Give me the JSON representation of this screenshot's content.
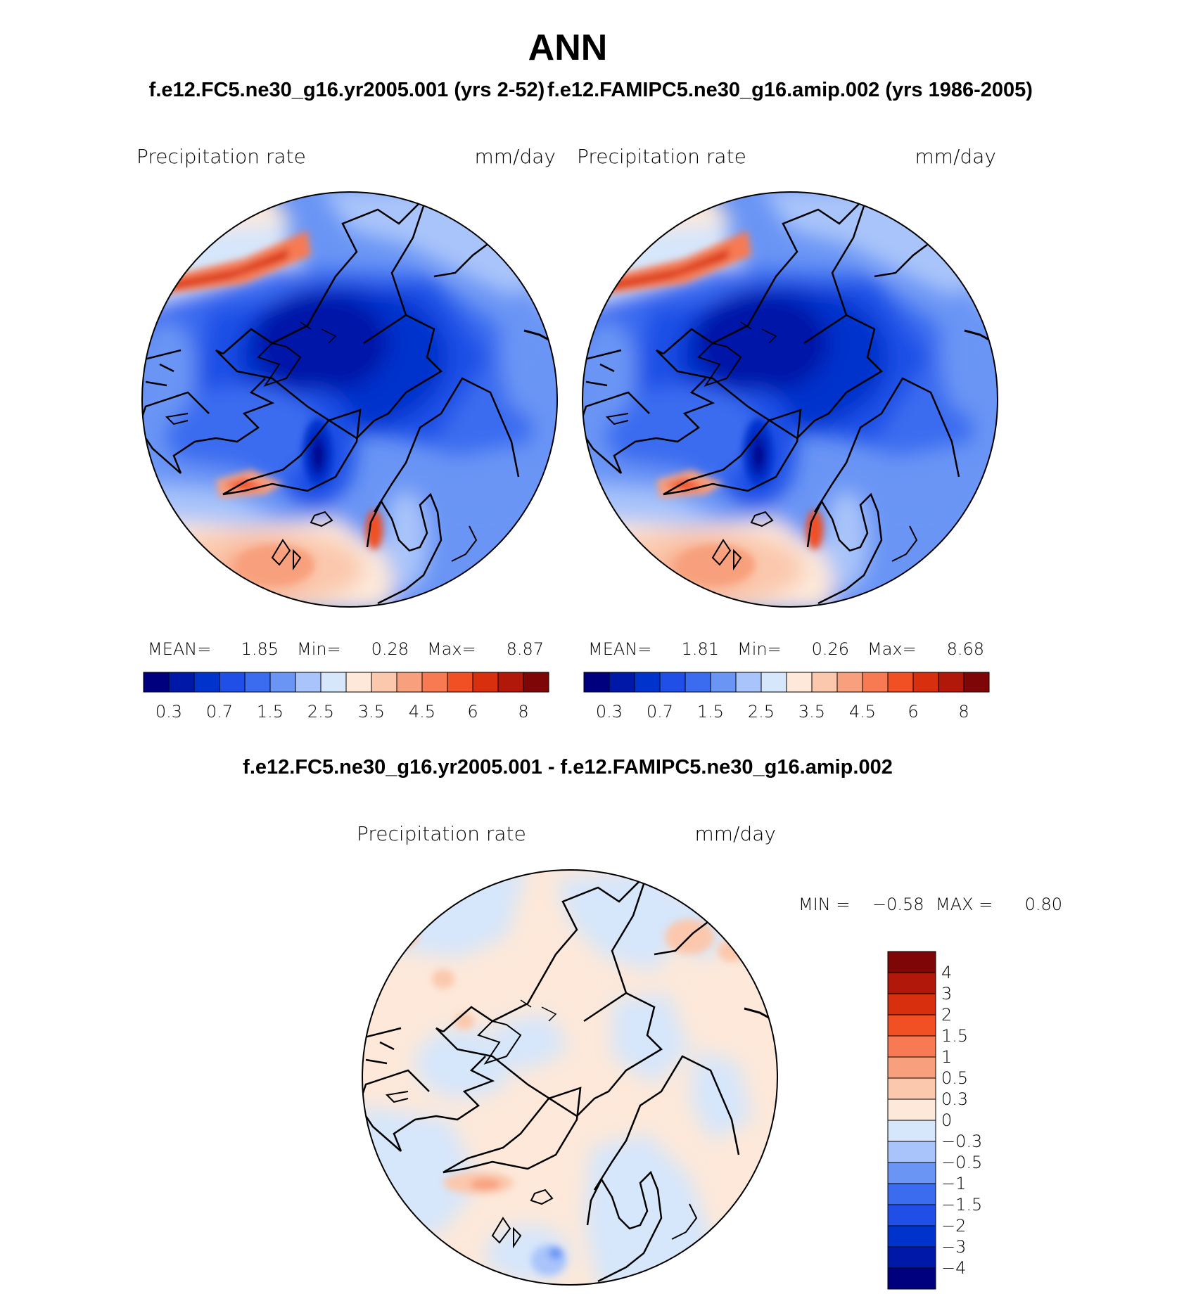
{
  "page": {
    "title": "ANN",
    "diff_title": "f.e12.FC5.ne30_g16.yr2005.001 - f.e12.FAMIPC5.ne30_g16.amip.002"
  },
  "chart_data": [
    {
      "type": "heatmap",
      "projection": "north-polar-stereographic",
      "title": "f.e12.FC5.ne30_g16.yr2005.001 (yrs 2-52)",
      "variable": "Precipitation rate",
      "units": "mm/day",
      "stats": {
        "mean_label": "MEAN=",
        "mean": "1.85",
        "min_label": "Min=",
        "min": "0.28",
        "max_label": "Max=",
        "max": "8.87"
      },
      "colorbar": {
        "orientation": "horizontal",
        "levels": [
          "0.2",
          "0.3",
          "0.5",
          "0.7",
          "1",
          "1.5",
          "2",
          "2.5",
          "3",
          "3.5",
          "4",
          "4.5",
          "5",
          "6",
          "7",
          "8"
        ],
        "tick_labels": [
          "0.3",
          "0.7",
          "1.5",
          "2.5",
          "3.5",
          "4.5",
          "6",
          "8"
        ],
        "colors": [
          "#00007f",
          "#0018a8",
          "#0033cc",
          "#1f4fe6",
          "#3b6cf0",
          "#6a95f5",
          "#a9c4fa",
          "#d6e6fb",
          "#fde8d9",
          "#fbc8ad",
          "#f8a07d",
          "#f77a52",
          "#f05023",
          "#d8300f",
          "#b2180a",
          "#7e0606"
        ]
      }
    },
    {
      "type": "heatmap",
      "projection": "north-polar-stereographic",
      "title": "f.e12.FAMIPC5.ne30_g16.amip.002 (yrs 1986-2005)",
      "variable": "Precipitation rate",
      "units": "mm/day",
      "stats": {
        "mean_label": "MEAN=",
        "mean": "1.81",
        "min_label": "Min=",
        "min": "0.26",
        "max_label": "Max=",
        "max": "8.68"
      },
      "colorbar": {
        "orientation": "horizontal",
        "levels": [
          "0.2",
          "0.3",
          "0.5",
          "0.7",
          "1",
          "1.5",
          "2",
          "2.5",
          "3",
          "3.5",
          "4",
          "4.5",
          "5",
          "6",
          "7",
          "8"
        ],
        "tick_labels": [
          "0.3",
          "0.7",
          "1.5",
          "2.5",
          "3.5",
          "4.5",
          "6",
          "8"
        ],
        "colors": [
          "#00007f",
          "#0018a8",
          "#0033cc",
          "#1f4fe6",
          "#3b6cf0",
          "#6a95f5",
          "#a9c4fa",
          "#d6e6fb",
          "#fde8d9",
          "#fbc8ad",
          "#f8a07d",
          "#f77a52",
          "#f05023",
          "#d8300f",
          "#b2180a",
          "#7e0606"
        ]
      }
    },
    {
      "type": "heatmap",
      "projection": "north-polar-stereographic",
      "title": "f.e12.FC5.ne30_g16.yr2005.001 - f.e12.FAMIPC5.ne30_g16.amip.002",
      "variable": "Precipitation rate",
      "units": "mm/day",
      "stats": {
        "min_label": "MIN =",
        "min": "−0.58",
        "max_label": "MAX =",
        "max": "0.80"
      },
      "colorbar": {
        "orientation": "vertical",
        "tick_labels": [
          "4",
          "3",
          "2",
          "1.5",
          "1",
          "0.5",
          "0.3",
          "0",
          "−0.3",
          "−0.5",
          "−1",
          "−1.5",
          "−2",
          "−3",
          "−4"
        ],
        "colors": [
          "#7e0606",
          "#b2180a",
          "#d8300f",
          "#f05023",
          "#f77a52",
          "#f8a07d",
          "#fbc8ad",
          "#fde8d9",
          "#d6e6fb",
          "#a9c4fa",
          "#6a95f5",
          "#3b6cf0",
          "#1f4fe6",
          "#0033cc",
          "#0018a8",
          "#00007f"
        ]
      }
    }
  ]
}
